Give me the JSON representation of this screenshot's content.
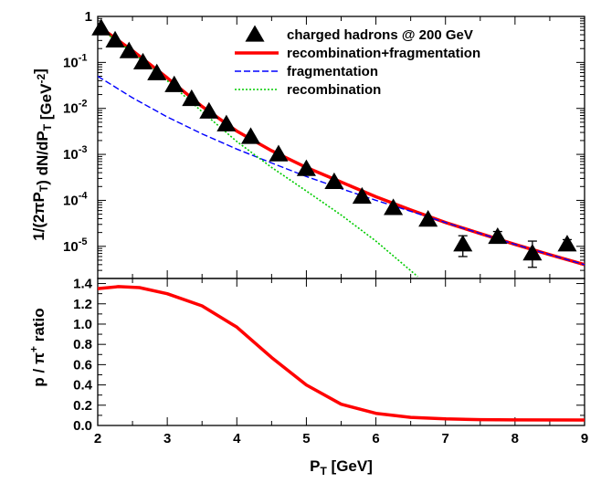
{
  "chart_data": [
    {
      "type": "scatter",
      "panel": "spectrum",
      "xlim": [
        2,
        9
      ],
      "ylim": [
        2e-06,
        1
      ],
      "yscale": "log",
      "ylabel": "1/(2πP_T) dN/dP_T [GeV^-2]",
      "yticks": [
        "1",
        "10-1",
        "10-2",
        "10-3",
        "10-4",
        "10-5"
      ],
      "grid": false,
      "legend_position": "top-right",
      "series": [
        {
          "name": "charged hadrons @ 200 GeV",
          "kind": "data-points",
          "color": "#000000",
          "points": [
            {
              "x": 2.05,
              "y": 0.55
            },
            {
              "x": 2.25,
              "y": 0.3
            },
            {
              "x": 2.45,
              "y": 0.175
            },
            {
              "x": 2.65,
              "y": 0.1
            },
            {
              "x": 2.85,
              "y": 0.058
            },
            {
              "x": 3.1,
              "y": 0.032
            },
            {
              "x": 3.35,
              "y": 0.016
            },
            {
              "x": 3.6,
              "y": 0.0085
            },
            {
              "x": 3.85,
              "y": 0.0045
            },
            {
              "x": 4.2,
              "y": 0.0024
            },
            {
              "x": 4.6,
              "y": 0.001
            },
            {
              "x": 5.0,
              "y": 0.00048
            },
            {
              "x": 5.4,
              "y": 0.00025
            },
            {
              "x": 5.8,
              "y": 0.00012
            },
            {
              "x": 6.25,
              "y": 6.8e-05
            },
            {
              "x": 6.75,
              "y": 3.8e-05
            },
            {
              "x": 7.25,
              "y": 1.1e-05,
              "ylo": 6e-06,
              "yhi": 1.7e-05
            },
            {
              "x": 7.75,
              "y": 1.6e-05,
              "ylo": 1.2e-05,
              "yhi": 2.1e-05
            },
            {
              "x": 8.25,
              "y": 7e-06,
              "ylo": 3.5e-06,
              "yhi": 1.3e-05
            },
            {
              "x": 8.75,
              "y": 1.1e-05,
              "ylo": 8.5e-06,
              "yhi": 1.4e-05
            }
          ]
        },
        {
          "name": "recombination+fragmentation",
          "kind": "line",
          "color": "#ff0000",
          "points": [
            [
              2.0,
              0.63
            ],
            [
              2.5,
              0.18
            ],
            [
              3.0,
              0.046
            ],
            [
              3.5,
              0.011
            ],
            [
              4.0,
              0.0032
            ],
            [
              4.5,
              0.0012
            ],
            [
              5.0,
              0.00052
            ],
            [
              5.5,
              0.00025
            ],
            [
              6.0,
              0.00012
            ],
            [
              6.5,
              6.2e-05
            ],
            [
              7.0,
              3.3e-05
            ],
            [
              7.5,
              1.9e-05
            ],
            [
              8.0,
              1.1e-05
            ],
            [
              8.5,
              6.6e-06
            ],
            [
              9.0,
              4e-06
            ]
          ]
        },
        {
          "name": "fragmentation",
          "kind": "line",
          "color": "#0000ff",
          "points": [
            [
              2.0,
              0.05
            ],
            [
              2.5,
              0.017
            ],
            [
              3.0,
              0.0065
            ],
            [
              3.5,
              0.0028
            ],
            [
              4.0,
              0.0013
            ],
            [
              4.5,
              0.00065
            ],
            [
              5.0,
              0.00033
            ],
            [
              5.5,
              0.00018
            ],
            [
              6.0,
              0.0001
            ],
            [
              6.5,
              5.8e-05
            ],
            [
              7.0,
              3.3e-05
            ],
            [
              7.5,
              1.9e-05
            ],
            [
              8.0,
              1.1e-05
            ],
            [
              8.5,
              6.6e-06
            ],
            [
              9.0,
              4e-06
            ]
          ]
        },
        {
          "name": "recombination",
          "kind": "line",
          "color": "#00cc00",
          "points": [
            [
              2.0,
              0.58
            ],
            [
              2.5,
              0.165
            ],
            [
              3.0,
              0.04
            ],
            [
              3.5,
              0.0085
            ],
            [
              4.0,
              0.0019
            ],
            [
              4.5,
              0.00052
            ],
            [
              5.0,
              0.00016
            ],
            [
              5.5,
              4.8e-05
            ],
            [
              6.0,
              1.3e-05
            ],
            [
              6.6,
              2.2e-06
            ]
          ]
        }
      ]
    },
    {
      "type": "line",
      "panel": "ratio",
      "xlim": [
        2,
        9
      ],
      "ylim": [
        0,
        1.45
      ],
      "xlabel": "P_T [GeV]",
      "ylabel": "p / π+ ratio",
      "xticks": [
        "2",
        "3",
        "4",
        "5",
        "6",
        "7",
        "8",
        "9"
      ],
      "yticks": [
        "0.0",
        "0.2",
        "0.4",
        "0.6",
        "0.8",
        "1.0",
        "1.2",
        "1.4"
      ],
      "series": [
        {
          "color": "#ff0000",
          "points": [
            [
              2.0,
              1.35
            ],
            [
              2.3,
              1.37
            ],
            [
              2.6,
              1.36
            ],
            [
              3.0,
              1.3
            ],
            [
              3.5,
              1.18
            ],
            [
              4.0,
              0.97
            ],
            [
              4.5,
              0.67
            ],
            [
              5.0,
              0.4
            ],
            [
              5.5,
              0.21
            ],
            [
              6.0,
              0.12
            ],
            [
              6.5,
              0.08
            ],
            [
              7.0,
              0.065
            ],
            [
              7.5,
              0.058
            ],
            [
              8.0,
              0.055
            ],
            [
              9.0,
              0.054
            ]
          ]
        }
      ]
    }
  ]
}
